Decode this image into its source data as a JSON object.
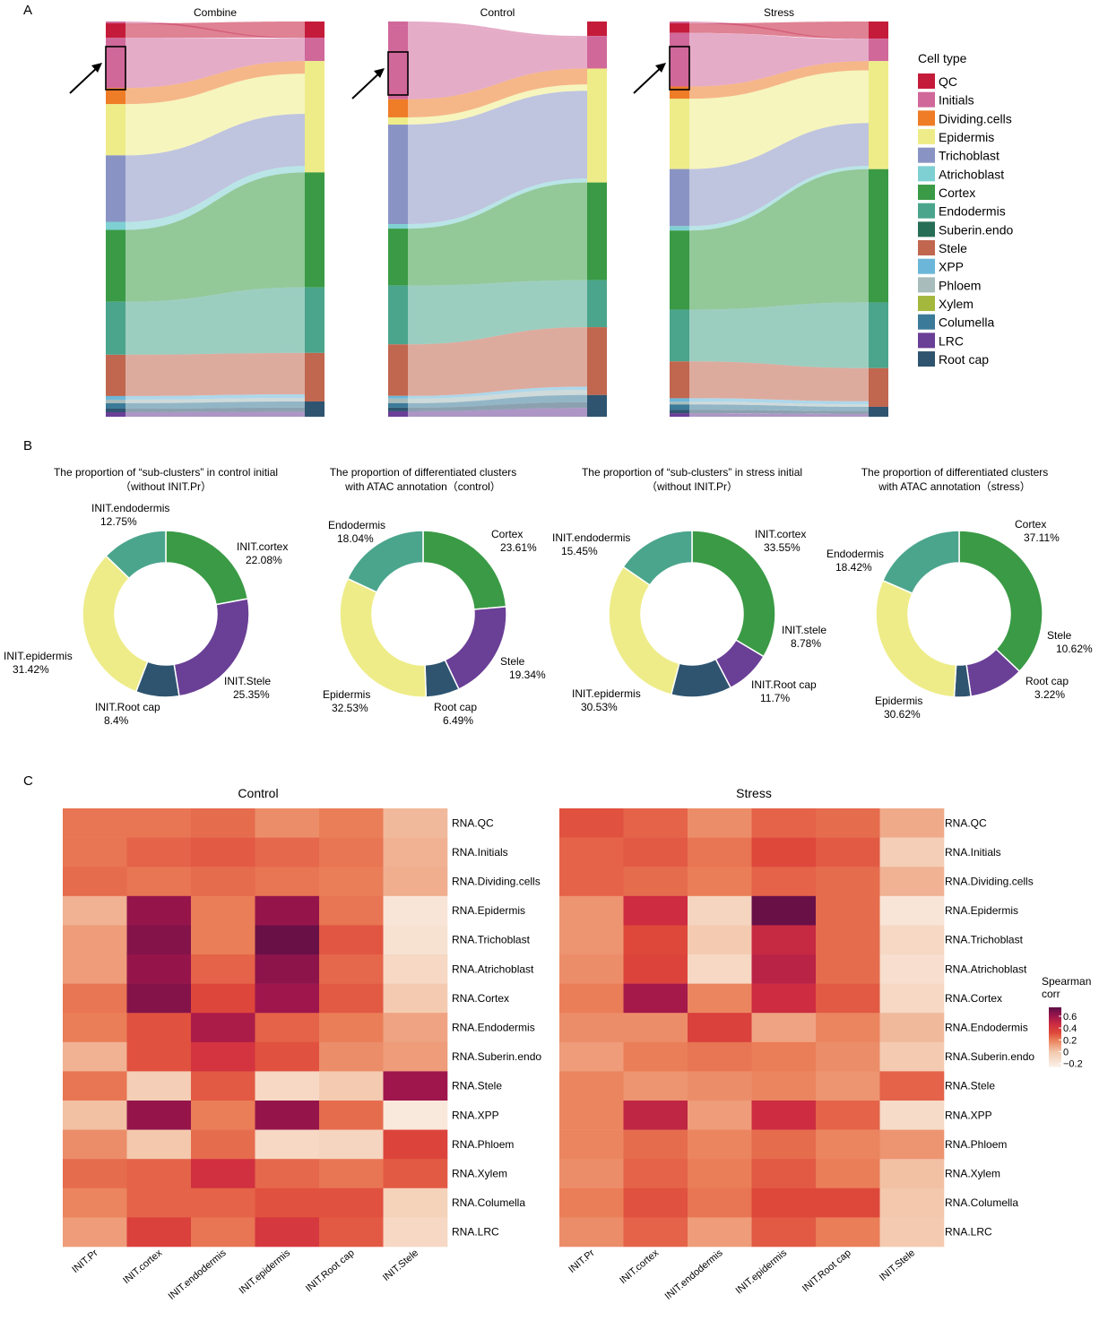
{
  "panels": {
    "a": "A",
    "b": "B",
    "c": "C"
  },
  "legend": {
    "title": "Cell type",
    "items": [
      {
        "label": "QC",
        "color": "#c51b3a"
      },
      {
        "label": "Initials",
        "color": "#d0689a"
      },
      {
        "label": "Dividing.cells",
        "color": "#ef7c26"
      },
      {
        "label": "Epidermis",
        "color": "#eeec88"
      },
      {
        "label": "Trichoblast",
        "color": "#8a94c4"
      },
      {
        "label": "Atrichoblast",
        "color": "#7fd0d3"
      },
      {
        "label": "Cortex",
        "color": "#3a9a45"
      },
      {
        "label": "Endodermis",
        "color": "#4aa58c"
      },
      {
        "label": "Suberin.endo",
        "color": "#276e57"
      },
      {
        "label": "Stele",
        "color": "#c1664f"
      },
      {
        "label": "XPP",
        "color": "#6cb7d9"
      },
      {
        "label": "Phloem",
        "color": "#a8bcbc"
      },
      {
        "label": "Xylem",
        "color": "#a3b83c"
      },
      {
        "label": "Columella",
        "color": "#3b7a98"
      },
      {
        "label": "LRC",
        "color": "#6a3f96"
      },
      {
        "label": "Root cap",
        "color": "#2e5470"
      }
    ]
  },
  "sankey": [
    {
      "title": "Combine",
      "left": [
        [
          "Initials",
          2
        ],
        [
          "QC",
          16
        ],
        [
          "Initials",
          56
        ],
        [
          "Dividing.cells",
          18
        ],
        [
          "Epidermis",
          57
        ],
        [
          "Trichoblast",
          74
        ],
        [
          "Atrichoblast",
          9
        ],
        [
          "Cortex",
          80
        ],
        [
          "Endodermis",
          59
        ],
        [
          "Stele",
          46
        ],
        [
          "XPP",
          4
        ],
        [
          "Phloem",
          4
        ],
        [
          "Columella",
          6
        ],
        [
          "Root cap",
          4
        ],
        [
          "LRC",
          5
        ]
      ],
      "right": [
        [
          "QC",
          18
        ],
        [
          "Initials",
          26
        ],
        [
          "Epidermis",
          124
        ],
        [
          "Cortex",
          128
        ],
        [
          "Endodermis",
          73
        ],
        [
          "Stele",
          54
        ],
        [
          "Root cap",
          17
        ]
      ]
    },
    {
      "title": "Control",
      "left": [
        [
          "Initials",
          4
        ],
        [
          "Initials",
          82
        ],
        [
          "Dividing.cells",
          20
        ],
        [
          "Epidermis",
          8
        ],
        [
          "Trichoblast",
          110
        ],
        [
          "Atrichoblast",
          5
        ],
        [
          "Cortex",
          63
        ],
        [
          "Endodermis",
          65
        ],
        [
          "Stele",
          57
        ],
        [
          "XPP",
          3
        ],
        [
          "Phloem",
          5
        ],
        [
          "Columella",
          5
        ],
        [
          "Root cap",
          4
        ],
        [
          "LRC",
          6
        ]
      ],
      "right": [
        [
          "QC",
          16
        ],
        [
          "Initials",
          36
        ],
        [
          "Epidermis",
          126
        ],
        [
          "Cortex",
          108
        ],
        [
          "Endodermis",
          52
        ],
        [
          "Stele",
          75
        ],
        [
          "Root cap",
          24
        ]
      ]
    },
    {
      "title": "Stress",
      "left": [
        [
          "Initials",
          2
        ],
        [
          "QC",
          11
        ],
        [
          "Initials",
          61
        ],
        [
          "Dividing.cells",
          14
        ],
        [
          "Epidermis",
          80
        ],
        [
          "Trichoblast",
          65
        ],
        [
          "Atrichoblast",
          5
        ],
        [
          "Cortex",
          90
        ],
        [
          "Endodermis",
          59
        ],
        [
          "Stele",
          42
        ],
        [
          "XPP",
          4
        ],
        [
          "Phloem",
          3
        ],
        [
          "Columella",
          6
        ],
        [
          "Root cap",
          4
        ],
        [
          "LRC",
          4
        ]
      ],
      "right": [
        [
          "QC",
          19
        ],
        [
          "Initials",
          25
        ],
        [
          "Epidermis",
          120
        ],
        [
          "Cortex",
          148
        ],
        [
          "Endodermis",
          73
        ],
        [
          "Stele",
          43
        ],
        [
          "Root cap",
          11
        ]
      ]
    }
  ],
  "chart_data": [
    {
      "type": "pie",
      "donut": true,
      "title_lines": [
        "The proportion of “sub-clusters” in control initial",
        "（without INIT.Pr）"
      ],
      "slices": [
        {
          "label": "INIT.cortex",
          "value": 22.08,
          "display": "22.08%",
          "color": "#3a9a45"
        },
        {
          "label": "INIT.Stele",
          "value": 25.35,
          "display": "25.35%",
          "color": "#6a3f96"
        },
        {
          "label": "INIT.Root cap",
          "value": 8.4,
          "display": "8.4%",
          "color": "#2e5470"
        },
        {
          "label": "INIT.epidermis",
          "value": 31.42,
          "display": "31.42%",
          "color": "#eeec88"
        },
        {
          "label": "INIT.endodermis",
          "value": 12.75,
          "display": "12.75%",
          "color": "#4aa58c"
        }
      ]
    },
    {
      "type": "pie",
      "donut": true,
      "title_lines": [
        "The proportion of  differentiated clusters",
        "with ATAC annotation（control）"
      ],
      "slices": [
        {
          "label": "Cortex",
          "value": 23.61,
          "display": "23.61%",
          "color": "#3a9a45"
        },
        {
          "label": "Stele",
          "value": 19.34,
          "display": "19.34%",
          "color": "#6a3f96"
        },
        {
          "label": "Root cap",
          "value": 6.49,
          "display": "6.49%",
          "color": "#2e5470"
        },
        {
          "label": "Epidermis",
          "value": 32.53,
          "display": "32.53%",
          "color": "#eeec88"
        },
        {
          "label": "Endodermis",
          "value": 18.04,
          "display": "18.04%",
          "color": "#4aa58c"
        }
      ]
    },
    {
      "type": "pie",
      "donut": true,
      "title_lines": [
        "The proportion of “sub-clusters” in stress initial",
        "（without INIT.Pr）"
      ],
      "slices": [
        {
          "label": "INIT.cortex",
          "value": 33.55,
          "display": "33.55%",
          "color": "#3a9a45"
        },
        {
          "label": "INIT.stele",
          "value": 8.78,
          "display": "8.78%",
          "color": "#6a3f96"
        },
        {
          "label": "INIT.Root cap",
          "value": 11.7,
          "display": "11.7%",
          "color": "#2e5470"
        },
        {
          "label": "INIT.epidermis",
          "value": 30.53,
          "display": "30.53%",
          "color": "#eeec88"
        },
        {
          "label": "INIT.endodermis",
          "value": 15.45,
          "display": "15.45%",
          "color": "#4aa58c"
        }
      ]
    },
    {
      "type": "pie",
      "donut": true,
      "title_lines": [
        "The proportion of  differentiated clusters",
        "with ATAC annotation（stress）"
      ],
      "slices": [
        {
          "label": "Cortex",
          "value": 37.11,
          "display": "37.11%",
          "color": "#3a9a45"
        },
        {
          "label": "Stele",
          "value": 10.62,
          "display": "10.62%",
          "color": "#6a3f96"
        },
        {
          "label": "Root cap",
          "value": 3.22,
          "display": "3.22%",
          "color": "#2e5470"
        },
        {
          "label": "Epidermis",
          "value": 30.62,
          "display": "30.62%",
          "color": "#eeec88"
        },
        {
          "label": "Endodermis",
          "value": 18.42,
          "display": "18.42%",
          "color": "#4aa58c"
        }
      ]
    },
    {
      "type": "heatmap",
      "title": "Control",
      "columns": [
        "INIT.Pr",
        "INIT.cortex",
        "INIT.endodermis",
        "INIT.epidermis",
        "INIT.Root cap",
        "INIT.Stele"
      ],
      "rows": [
        "RNA.QC",
        "RNA.Initials",
        "RNA.Dividing.cells",
        "RNA.Epidermis",
        "RNA.Trichoblast",
        "RNA.Atrichoblast",
        "RNA.Cortex",
        "RNA.Endodermis",
        "RNA.Suberin.endo",
        "RNA.Stele",
        "RNA.XPP",
        "RNA.Phloem",
        "RNA.Xylem",
        "RNA.Columella",
        "RNA.LRC"
      ],
      "values": [
        [
          0.22,
          0.22,
          0.24,
          0.16,
          0.2,
          0.04
        ],
        [
          0.22,
          0.26,
          0.28,
          0.25,
          0.22,
          0.06
        ],
        [
          0.24,
          0.22,
          0.24,
          0.22,
          0.2,
          0.07
        ],
        [
          0.06,
          0.62,
          0.2,
          0.62,
          0.22,
          -0.18
        ],
        [
          0.12,
          0.66,
          0.2,
          0.72,
          0.29,
          -0.16
        ],
        [
          0.12,
          0.62,
          0.26,
          0.64,
          0.25,
          -0.1
        ],
        [
          0.22,
          0.66,
          0.33,
          0.6,
          0.28,
          -0.02
        ],
        [
          0.2,
          0.3,
          0.56,
          0.26,
          0.2,
          0.1
        ],
        [
          0.06,
          0.3,
          0.42,
          0.3,
          0.16,
          0.12
        ],
        [
          0.22,
          -0.04,
          0.28,
          -0.1,
          -0.02,
          0.6
        ],
        [
          0.02,
          0.62,
          0.2,
          0.62,
          0.24,
          -0.2
        ],
        [
          0.16,
          0.0,
          0.24,
          -0.1,
          -0.08,
          0.34
        ],
        [
          0.24,
          0.26,
          0.44,
          0.25,
          0.22,
          0.28
        ],
        [
          0.18,
          0.26,
          0.26,
          0.3,
          0.3,
          -0.06
        ],
        [
          0.12,
          0.36,
          0.22,
          0.4,
          0.28,
          -0.1
        ]
      ]
    },
    {
      "type": "heatmap",
      "title": "Stress",
      "columns": [
        "INIT.Pr",
        "INIT.cortex",
        "INIT.endodermis",
        "INIT.epidermis",
        "INIT.Root cap",
        "INIT.Stele"
      ],
      "rows": [
        "RNA.QC",
        "RNA.Initials",
        "RNA.Dividing.cells",
        "RNA.Epidermis",
        "RNA.Trichoblast",
        "RNA.Atrichoblast",
        "RNA.Cortex",
        "RNA.Endodermis",
        "RNA.Suberin.endo",
        "RNA.Stele",
        "RNA.XPP",
        "RNA.Phloem",
        "RNA.Xylem",
        "RNA.Columella",
        "RNA.LRC"
      ],
      "values": [
        [
          0.3,
          0.26,
          0.16,
          0.26,
          0.24,
          0.08
        ],
        [
          0.26,
          0.28,
          0.22,
          0.32,
          0.28,
          -0.04
        ],
        [
          0.26,
          0.24,
          0.2,
          0.26,
          0.24,
          0.06
        ],
        [
          0.14,
          0.46,
          -0.08,
          0.72,
          0.24,
          -0.18
        ],
        [
          0.14,
          0.32,
          -0.02,
          0.48,
          0.24,
          -0.1
        ],
        [
          0.16,
          0.34,
          -0.1,
          0.52,
          0.24,
          -0.14
        ],
        [
          0.2,
          0.58,
          0.18,
          0.46,
          0.28,
          -0.1
        ],
        [
          0.16,
          0.16,
          0.36,
          0.1,
          0.18,
          0.04
        ],
        [
          0.12,
          0.2,
          0.22,
          0.2,
          0.16,
          -0.02
        ],
        [
          0.18,
          0.14,
          0.16,
          0.18,
          0.14,
          0.26
        ],
        [
          0.18,
          0.5,
          0.12,
          0.46,
          0.26,
          -0.12
        ],
        [
          0.18,
          0.24,
          0.18,
          0.24,
          0.18,
          0.14
        ],
        [
          0.16,
          0.26,
          0.2,
          0.28,
          0.2,
          0.02
        ],
        [
          0.2,
          0.3,
          0.22,
          0.32,
          0.32,
          0.0
        ],
        [
          0.16,
          0.26,
          0.12,
          0.28,
          0.2,
          -0.02
        ]
      ]
    }
  ],
  "colorbar": {
    "title_lines": [
      "Spearman",
      "corr"
    ],
    "ticks": [
      {
        "v": 0.6,
        "t": "0.6"
      },
      {
        "v": 0.4,
        "t": "0.4"
      },
      {
        "v": 0.2,
        "t": "0.2"
      },
      {
        "v": 0,
        "t": "0"
      },
      {
        "v": -0.2,
        "t": "−0.2"
      }
    ],
    "min": -0.25,
    "max": 0.75
  }
}
